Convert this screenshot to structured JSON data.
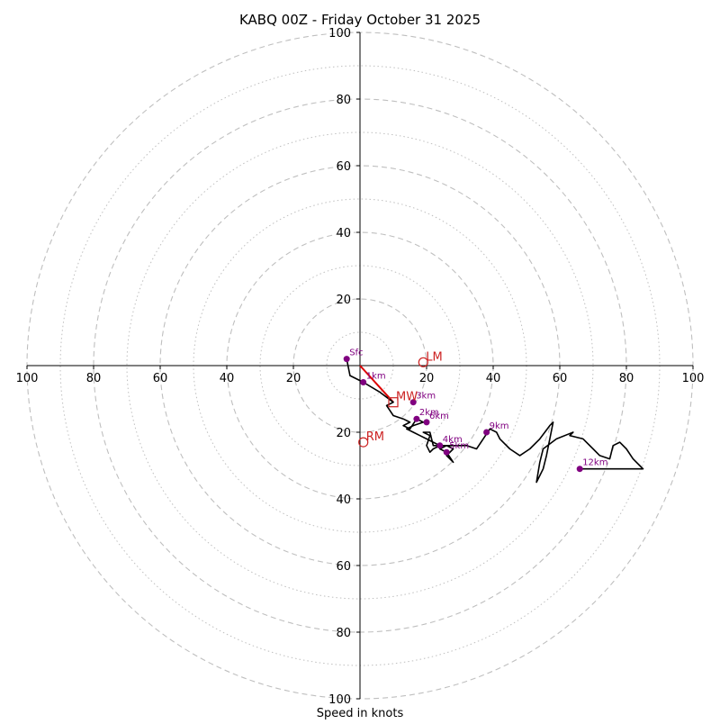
{
  "chart_data": {
    "type": "hodograph",
    "title": "KABQ 00Z - Friday October 31 2025",
    "xlabel": "Speed in knots",
    "range": [
      -100,
      100
    ],
    "ring_major": [
      20,
      40,
      60,
      80,
      100
    ],
    "ring_minor": [
      10,
      30,
      50,
      70,
      90
    ],
    "x_tick_labels": [
      "100",
      "80",
      "60",
      "40",
      "20",
      "20",
      "40",
      "60",
      "80",
      "100"
    ],
    "y_tick_labels": [
      "100",
      "80",
      "60",
      "40",
      "20",
      "20",
      "40",
      "60",
      "80",
      "100"
    ],
    "x_ticks": [
      -100,
      -80,
      -60,
      -40,
      -20,
      20,
      40,
      60,
      80,
      100
    ],
    "y_ticks": [
      100,
      80,
      60,
      40,
      20,
      -20,
      -40,
      -60,
      -80,
      -100
    ],
    "grid": true,
    "hodograph_line": [
      [
        -4,
        2
      ],
      [
        -3,
        -3
      ],
      [
        1,
        -5
      ],
      [
        6,
        -8
      ],
      [
        10,
        -11
      ],
      [
        8,
        -12
      ],
      [
        10,
        -15
      ],
      [
        13,
        -16
      ],
      [
        15,
        -17
      ],
      [
        13,
        -18
      ],
      [
        15,
        -19
      ],
      [
        17,
        -16
      ],
      [
        19,
        -17
      ],
      [
        16,
        -18
      ],
      [
        14,
        -19
      ],
      [
        16,
        -20
      ],
      [
        18,
        -21
      ],
      [
        20,
        -22
      ],
      [
        22,
        -23
      ],
      [
        24,
        -24
      ],
      [
        22,
        -25
      ],
      [
        21,
        -26
      ],
      [
        20,
        -24
      ],
      [
        21,
        -21
      ],
      [
        19,
        -20
      ],
      [
        21,
        -20
      ],
      [
        22,
        -24
      ],
      [
        26,
        -24
      ],
      [
        28,
        -25
      ],
      [
        26,
        -27
      ],
      [
        28,
        -29
      ],
      [
        26,
        -26
      ],
      [
        24,
        -25
      ],
      [
        26,
        -24
      ],
      [
        30,
        -24
      ],
      [
        32,
        -24
      ],
      [
        35,
        -25
      ],
      [
        37,
        -22
      ],
      [
        39,
        -19
      ],
      [
        41,
        -20
      ],
      [
        42,
        -22
      ],
      [
        45,
        -25
      ],
      [
        48,
        -27
      ],
      [
        51,
        -25
      ],
      [
        54,
        -22
      ],
      [
        57,
        -18
      ],
      [
        58,
        -17
      ],
      [
        56,
        -27
      ],
      [
        55,
        -31
      ],
      [
        54,
        -33
      ],
      [
        53,
        -35
      ],
      [
        54,
        -29
      ],
      [
        55,
        -25
      ],
      [
        59,
        -22
      ],
      [
        64,
        -20
      ],
      [
        63,
        -21
      ],
      [
        67,
        -22
      ],
      [
        70,
        -25
      ],
      [
        72,
        -27
      ],
      [
        75,
        -28
      ],
      [
        76,
        -24
      ],
      [
        78,
        -23
      ],
      [
        80,
        -25
      ],
      [
        82,
        -28
      ],
      [
        84,
        -30
      ],
      [
        85,
        -31
      ],
      [
        66,
        -31
      ]
    ],
    "height_labels": [
      {
        "label": "Sfc",
        "u": -4,
        "v": 2
      },
      {
        "label": "1km",
        "u": 1,
        "v": -5
      },
      {
        "label": "2km",
        "u": 17,
        "v": -16
      },
      {
        "label": "3km",
        "u": 16,
        "v": -11
      },
      {
        "label": "4km",
        "u": 24,
        "v": -24
      },
      {
        "label": "5km",
        "u": 26,
        "v": -26
      },
      {
        "label": "6km",
        "u": 20,
        "v": -17
      },
      {
        "label": "9km",
        "u": 38,
        "v": -20
      },
      {
        "label": "12km",
        "u": 66,
        "v": -31
      }
    ],
    "storm_motion": [
      {
        "label": "LM",
        "u": 19,
        "v": 1
      },
      {
        "label": "RM",
        "u": 1,
        "v": -23
      },
      {
        "label": "MW",
        "u": 10,
        "v": -11
      }
    ],
    "shear_vector": {
      "from": [
        0,
        0
      ],
      "to": [
        10,
        -11
      ],
      "color": "#dd0000"
    },
    "colors": {
      "grid": "#bfbfbf",
      "axis": "#000000",
      "hodograph": "#000000",
      "height_markers": "#800080",
      "storm_motion": "#cc2222"
    }
  }
}
